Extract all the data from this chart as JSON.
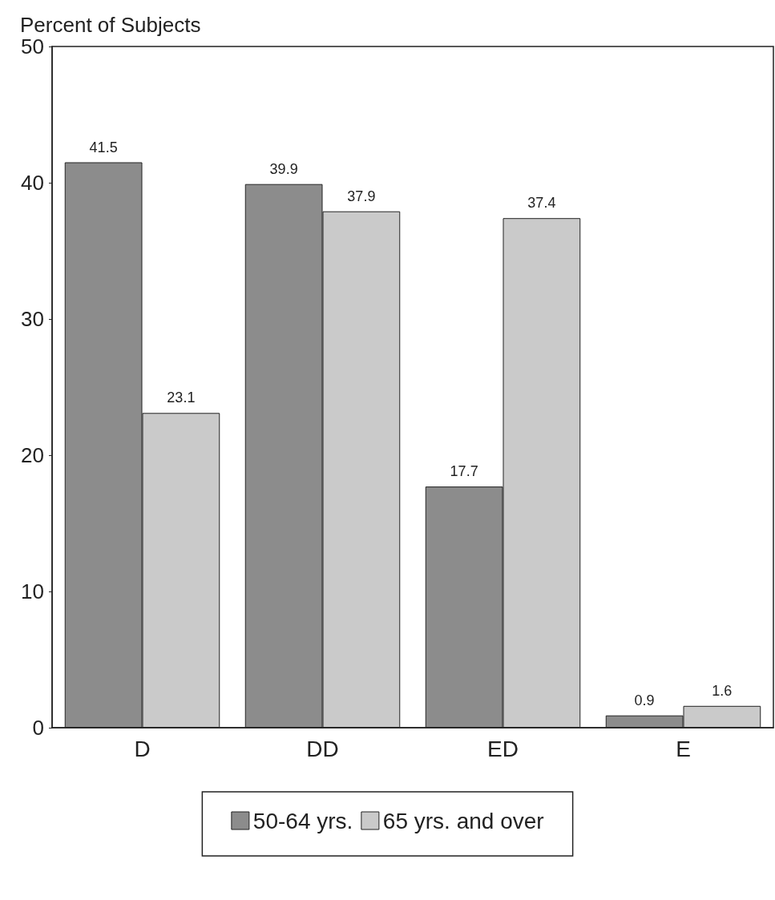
{
  "chart_data": {
    "type": "bar",
    "ylabel": "Percent of Subjects",
    "categories": [
      "D",
      "DD",
      "ED",
      "E"
    ],
    "series": [
      {
        "name": "50-64 yrs.",
        "color": "#8c8c8c",
        "values": [
          41.5,
          39.9,
          17.7,
          0.9
        ]
      },
      {
        "name": "65 yrs. and over",
        "color": "#cacaca",
        "values": [
          23.1,
          37.9,
          37.4,
          1.6
        ]
      }
    ],
    "ylim": [
      0,
      50
    ],
    "yticks": [
      0,
      10,
      20,
      30,
      40,
      50
    ],
    "grid": false,
    "legend": "bottom",
    "data_labels": true
  }
}
